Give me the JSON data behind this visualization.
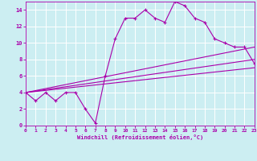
{
  "xlabel": "Windchill (Refroidissement éolien,°C)",
  "ylabel": "",
  "bg_color": "#cceef2",
  "line_color": "#aa00aa",
  "grid_color": "#ffffff",
  "xlim": [
    0,
    23
  ],
  "ylim": [
    0,
    15
  ],
  "xticks": [
    0,
    1,
    2,
    3,
    4,
    5,
    6,
    7,
    8,
    9,
    10,
    11,
    12,
    13,
    14,
    15,
    16,
    17,
    18,
    19,
    20,
    21,
    22,
    23
  ],
  "yticks": [
    0,
    2,
    4,
    6,
    8,
    10,
    12,
    14
  ],
  "line1_x": [
    0,
    1,
    2,
    3,
    4,
    5,
    6,
    7,
    8,
    9,
    10,
    11,
    12,
    13,
    14,
    15,
    16,
    17,
    18,
    19,
    20,
    21,
    22,
    23
  ],
  "line1_y": [
    4,
    3,
    4,
    3,
    4,
    4,
    2,
    0.3,
    6,
    10.5,
    13,
    13,
    14,
    13,
    12.5,
    15,
    14.5,
    13,
    12.5,
    10.5,
    10,
    9.5,
    9.5,
    7.5
  ],
  "line2_x": [
    0,
    23
  ],
  "line2_y": [
    4,
    8
  ],
  "line3_x": [
    0,
    23
  ],
  "line3_y": [
    4,
    7
  ],
  "line4_x": [
    0,
    23
  ],
  "line4_y": [
    4,
    9.5
  ]
}
